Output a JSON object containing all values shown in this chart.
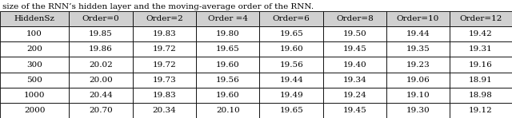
{
  "caption": "size of the RNN’s hidden layer and the moving-average order of the RNN.",
  "col_headers": [
    "HiddenSz",
    "Order=0",
    "Order=2",
    "Order =4",
    "Order=6",
    "Order=8",
    "Order=10",
    "Order=12"
  ],
  "rows": [
    [
      "100",
      "19.85",
      "19.83",
      "19.80",
      "19.65",
      "19.50",
      "19.44",
      "19.42"
    ],
    [
      "200",
      "19.86",
      "19.72",
      "19.65",
      "19.60",
      "19.45",
      "19.35",
      "19.31"
    ],
    [
      "300",
      "20.02",
      "19.72",
      "19.60",
      "19.56",
      "19.40",
      "19.23",
      "19.16"
    ],
    [
      "500",
      "20.00",
      "19.73",
      "19.56",
      "19.44",
      "19.34",
      "19.06",
      "18.91"
    ],
    [
      "1000",
      "20.44",
      "19.83",
      "19.60",
      "19.49",
      "19.24",
      "19.10",
      "18.98"
    ],
    [
      "2000",
      "20.70",
      "20.34",
      "20.10",
      "19.65",
      "19.45",
      "19.30",
      "19.12"
    ]
  ],
  "caption_fontsize": 7.5,
  "header_fontsize": 7.5,
  "cell_fontsize": 7.5,
  "fig_width": 6.4,
  "fig_height": 1.48,
  "header_bg": "#d0d0d0",
  "border_color": "black"
}
